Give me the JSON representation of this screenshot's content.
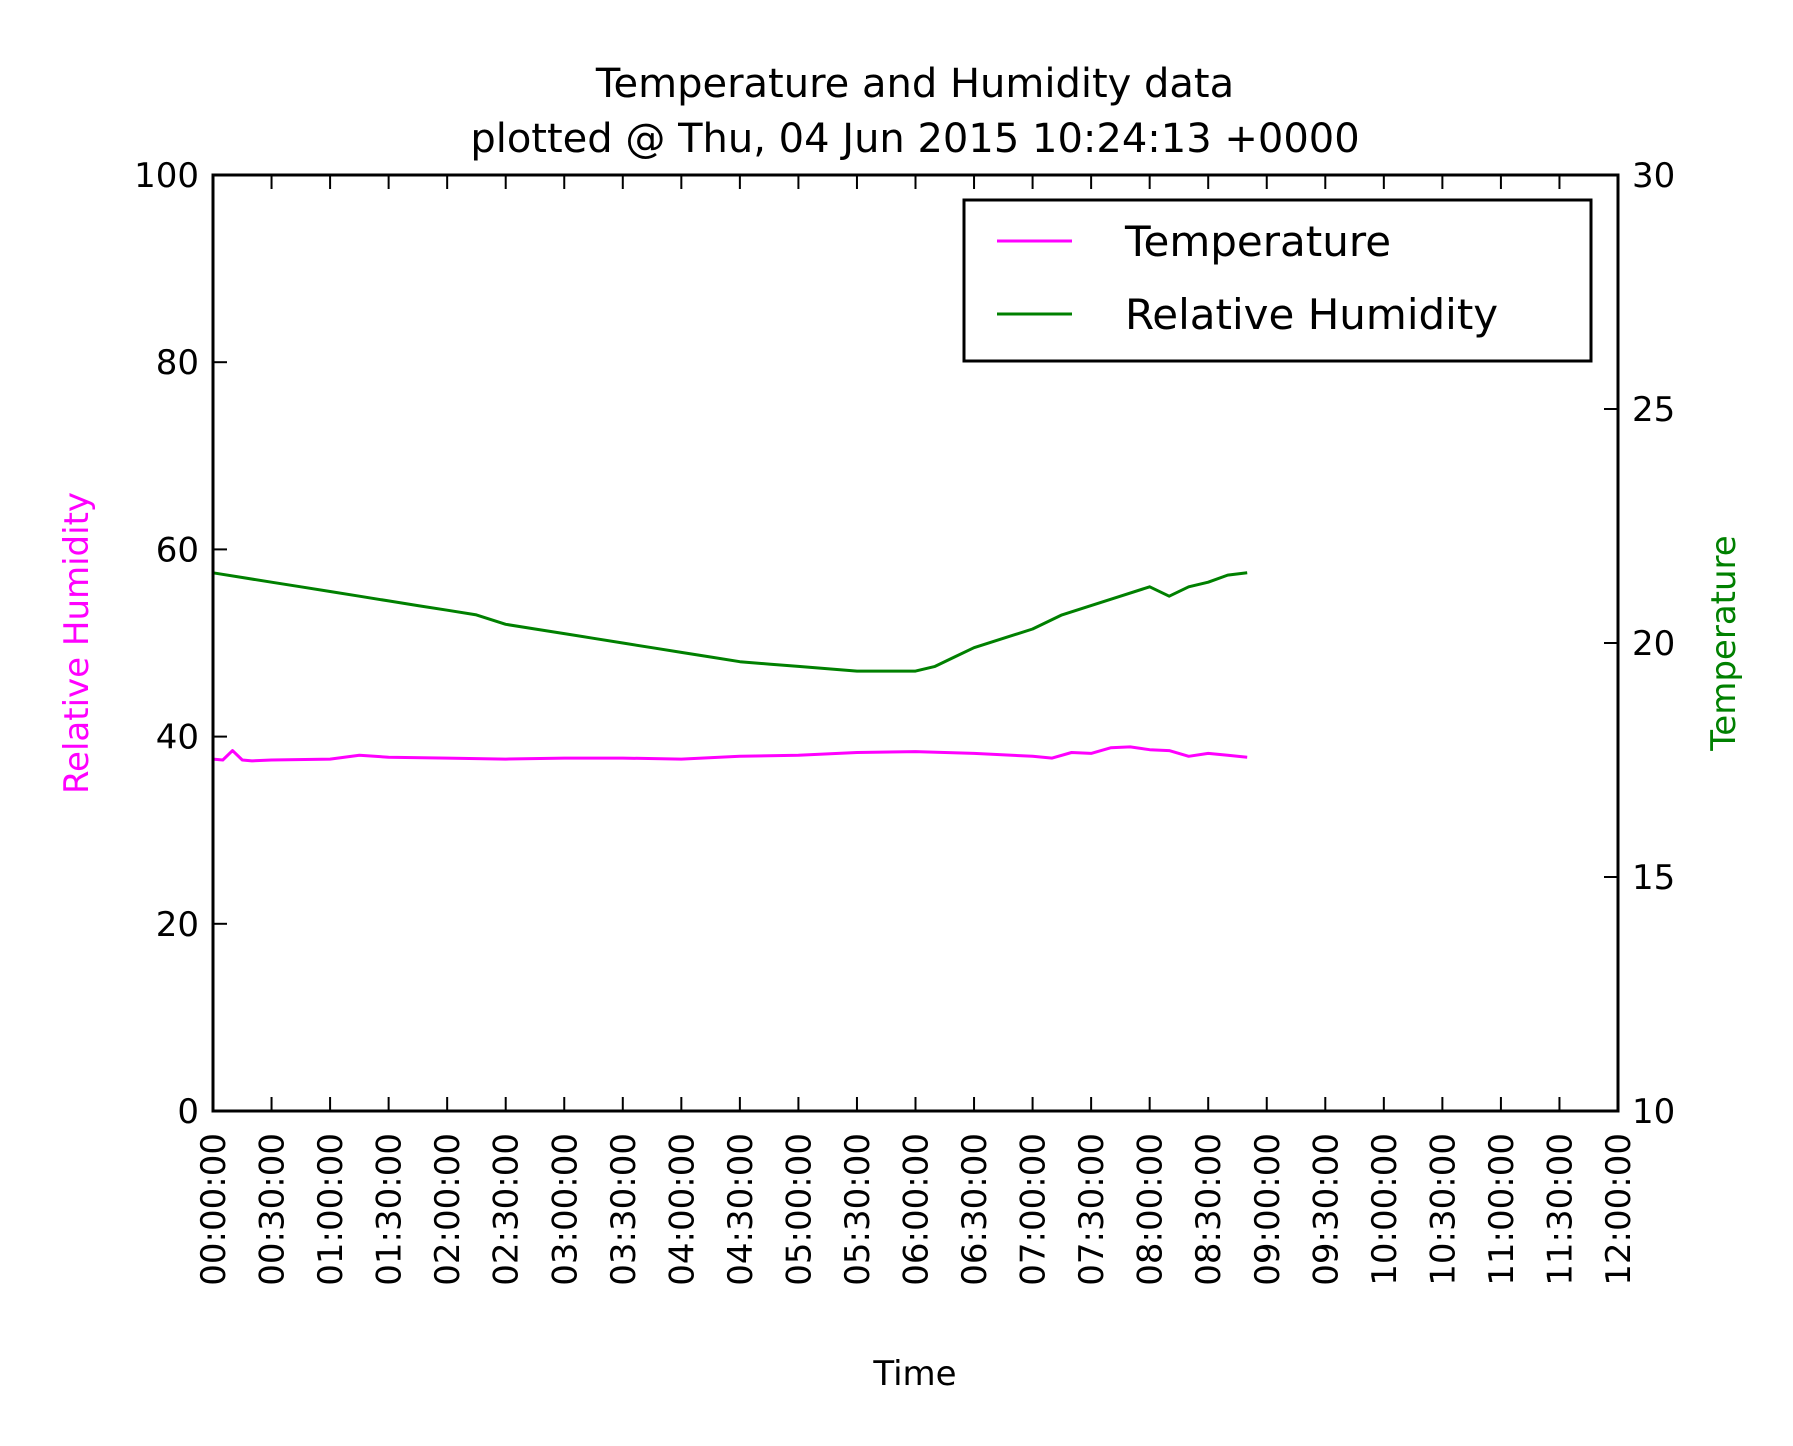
{
  "chart_data": {
    "type": "line",
    "title": "Temperature and Humidity data",
    "subtitle": "plotted @ Thu, 04 Jun 2015 10:24:13 +0000",
    "xlabel": "Time",
    "ylabel_left": "Relative Humidity",
    "ylabel_right": "Temperature",
    "ylabel_left_color": "#ff00ff",
    "ylabel_right_color": "#008000",
    "xlim": [
      "00:00:00",
      "12:00:00"
    ],
    "ylim_left": [
      0,
      100
    ],
    "ylim_right": [
      10,
      30
    ],
    "x_ticks": [
      "00:00:00",
      "00:30:00",
      "01:00:00",
      "01:30:00",
      "02:00:00",
      "02:30:00",
      "03:00:00",
      "03:30:00",
      "04:00:00",
      "04:30:00",
      "05:00:00",
      "05:30:00",
      "06:00:00",
      "06:30:00",
      "07:00:00",
      "07:30:00",
      "08:00:00",
      "08:30:00",
      "09:00:00",
      "09:30:00",
      "10:00:00",
      "10:30:00",
      "11:00:00",
      "11:30:00",
      "12:00:00"
    ],
    "y_ticks_left": [
      0,
      20,
      40,
      60,
      80,
      100
    ],
    "y_ticks_right": [
      10,
      15,
      20,
      25,
      30
    ],
    "grid": false,
    "legend_position": "top-right",
    "legend": [
      {
        "label": "Temperature",
        "color": "#ff00ff"
      },
      {
        "label": "Relative Humidity",
        "color": "#008000"
      }
    ],
    "series": [
      {
        "name": "Temperature",
        "color": "#ff00ff",
        "axis": "left",
        "x": [
          "00:00:00",
          "00:05:00",
          "00:10:00",
          "00:15:00",
          "00:20:00",
          "00:30:00",
          "01:00:00",
          "01:15:00",
          "01:30:00",
          "02:00:00",
          "02:30:00",
          "03:00:00",
          "03:30:00",
          "04:00:00",
          "04:30:00",
          "05:00:00",
          "05:30:00",
          "06:00:00",
          "06:30:00",
          "07:00:00",
          "07:10:00",
          "07:20:00",
          "07:30:00",
          "07:40:00",
          "07:50:00",
          "08:00:00",
          "08:10:00",
          "08:20:00",
          "08:30:00",
          "08:40:00",
          "08:50:00"
        ],
        "y": [
          37.6,
          37.5,
          38.5,
          37.5,
          37.4,
          37.5,
          37.6,
          38.0,
          37.8,
          37.7,
          37.6,
          37.7,
          37.7,
          37.6,
          37.9,
          38.0,
          38.3,
          38.4,
          38.2,
          37.9,
          37.7,
          38.3,
          38.2,
          38.8,
          38.9,
          38.6,
          38.5,
          37.9,
          38.2,
          38.0,
          37.8
        ]
      },
      {
        "name": "Relative Humidity",
        "color": "#008000",
        "axis": "right",
        "x": [
          "00:00:00",
          "00:15:00",
          "00:30:00",
          "00:45:00",
          "01:00:00",
          "01:15:00",
          "01:30:00",
          "01:45:00",
          "02:00:00",
          "02:15:00",
          "02:30:00",
          "02:45:00",
          "03:00:00",
          "03:15:00",
          "03:30:00",
          "03:45:00",
          "04:00:00",
          "04:15:00",
          "04:30:00",
          "04:45:00",
          "05:00:00",
          "05:15:00",
          "05:30:00",
          "05:45:00",
          "06:00:00",
          "06:10:00",
          "06:20:00",
          "06:30:00",
          "06:45:00",
          "07:00:00",
          "07:15:00",
          "07:30:00",
          "07:45:00",
          "08:00:00",
          "08:10:00",
          "08:20:00",
          "08:30:00",
          "08:40:00",
          "08:50:00"
        ],
        "y": [
          21.5,
          21.4,
          21.3,
          21.2,
          21.1,
          21.0,
          20.9,
          20.8,
          20.7,
          20.6,
          20.4,
          20.3,
          20.2,
          20.1,
          20.0,
          19.9,
          19.8,
          19.7,
          19.6,
          19.55,
          19.5,
          19.45,
          19.4,
          19.4,
          19.4,
          19.5,
          19.7,
          19.9,
          20.1,
          20.3,
          20.6,
          20.8,
          21.0,
          21.2,
          21.0,
          21.2,
          21.3,
          21.45,
          21.5
        ]
      }
    ]
  }
}
